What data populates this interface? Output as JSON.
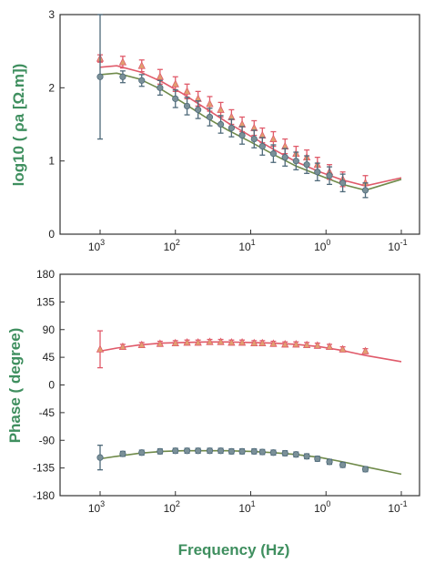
{
  "colors": {
    "series1": "#e05a6a",
    "series1_marker": "#e0a070",
    "series2": "#4f6a7a",
    "series2_marker": "#7a9098",
    "fit2": "#6f8a4a",
    "label": "#3f8f5f",
    "axis": "#333333"
  },
  "chart_data": [
    {
      "type": "scatter",
      "xscale": "log",
      "xlim": [
        1000,
        0.1
      ],
      "ylim": [
        0,
        3
      ],
      "xticks": [
        1000,
        100,
        10,
        1,
        0.1
      ],
      "xtick_labels": [
        {
          "base": "10",
          "exp": "3"
        },
        {
          "base": "10",
          "exp": "2"
        },
        {
          "base": "10",
          "exp": "1"
        },
        {
          "base": "10",
          "exp": "0"
        },
        {
          "base": "10",
          "exp": "-1"
        }
      ],
      "yticks": [
        "0",
        "1",
        "2",
        "3"
      ],
      "ylabel": "log10 ( ρa [Ω.m])",
      "series": [
        {
          "marker": "triangle",
          "x": [
            1000,
            500,
            280,
            160,
            100,
            70,
            50,
            35,
            25,
            18,
            13,
            9,
            7,
            5,
            3.5,
            2.5,
            1.8,
            1.3,
            0.9,
            0.6,
            0.3
          ],
          "y": [
            2.4,
            2.35,
            2.3,
            2.15,
            2.05,
            1.95,
            1.85,
            1.78,
            1.7,
            1.6,
            1.5,
            1.45,
            1.35,
            1.3,
            1.2,
            1.1,
            1.05,
            0.95,
            0.85,
            0.75,
            0.7
          ],
          "err": [
            0.05,
            0.08,
            0.08,
            0.1,
            0.1,
            0.1,
            0.1,
            0.1,
            0.1,
            0.1,
            0.1,
            0.1,
            0.1,
            0.1,
            0.1,
            0.1,
            0.1,
            0.1,
            0.1,
            0.1,
            0.1
          ]
        },
        {
          "marker": "circle",
          "x": [
            1000,
            500,
            280,
            160,
            100,
            70,
            50,
            35,
            25,
            18,
            13,
            9,
            7,
            5,
            3.5,
            2.5,
            1.8,
            1.3,
            0.9,
            0.6,
            0.3
          ],
          "y": [
            2.15,
            2.15,
            2.1,
            2.0,
            1.85,
            1.75,
            1.7,
            1.6,
            1.5,
            1.45,
            1.35,
            1.3,
            1.2,
            1.1,
            1.05,
            1.0,
            0.95,
            0.85,
            0.8,
            0.7,
            0.6
          ],
          "err": [
            0.85,
            0.08,
            0.08,
            0.1,
            0.12,
            0.12,
            0.12,
            0.12,
            0.12,
            0.12,
            0.12,
            0.12,
            0.12,
            0.12,
            0.12,
            0.12,
            0.12,
            0.12,
            0.12,
            0.12,
            0.1
          ]
        }
      ],
      "fits": [
        {
          "x": [
            1000,
            600,
            300,
            150,
            80,
            40,
            20,
            10,
            5,
            2.5,
            1.2,
            0.6,
            0.3,
            0.1
          ],
          "y": [
            2.28,
            2.3,
            2.22,
            2.08,
            1.92,
            1.72,
            1.52,
            1.34,
            1.16,
            0.99,
            0.85,
            0.74,
            0.66,
            0.77
          ]
        },
        {
          "x": [
            1000,
            600,
            300,
            150,
            80,
            40,
            20,
            10,
            5,
            2.5,
            1.2,
            0.6,
            0.3,
            0.1
          ],
          "y": [
            2.18,
            2.2,
            2.12,
            1.97,
            1.8,
            1.6,
            1.42,
            1.26,
            1.09,
            0.93,
            0.8,
            0.68,
            0.6,
            0.75
          ]
        }
      ]
    },
    {
      "type": "scatter",
      "xscale": "log",
      "xlim": [
        1000,
        0.1
      ],
      "ylim": [
        -180,
        180
      ],
      "xticks": [
        1000,
        100,
        10,
        1,
        0.1
      ],
      "xtick_labels": [
        {
          "base": "10",
          "exp": "3"
        },
        {
          "base": "10",
          "exp": "2"
        },
        {
          "base": "10",
          "exp": "1"
        },
        {
          "base": "10",
          "exp": "0"
        },
        {
          "base": "10",
          "exp": "-1"
        }
      ],
      "yticks": [
        "-180",
        "-135",
        "-90",
        "-45",
        "0",
        "45",
        "90",
        "135",
        "180"
      ],
      "ylabel": "Phase ( degree)",
      "xlabel": "Frequency (Hz)",
      "series": [
        {
          "marker": "triangle",
          "x": [
            1000,
            500,
            280,
            160,
            100,
            70,
            50,
            35,
            25,
            18,
            13,
            9,
            7,
            5,
            3.5,
            2.5,
            1.8,
            1.3,
            0.9,
            0.6,
            0.3
          ],
          "y": [
            58,
            62,
            65,
            67,
            68,
            69,
            69,
            70,
            70,
            69,
            69,
            68,
            68,
            67,
            66,
            66,
            65,
            64,
            62,
            58,
            55
          ],
          "err": [
            30,
            4,
            4,
            4,
            4,
            4,
            4,
            4,
            4,
            4,
            4,
            4,
            4,
            4,
            4,
            4,
            4,
            4,
            4,
            4,
            4
          ]
        },
        {
          "marker": "circle",
          "x": [
            1000,
            500,
            280,
            160,
            100,
            70,
            50,
            35,
            25,
            18,
            13,
            9,
            7,
            5,
            3.5,
            2.5,
            1.8,
            1.3,
            0.9,
            0.6,
            0.3
          ],
          "y": [
            -118,
            -112,
            -110,
            -108,
            -107,
            -107,
            -107,
            -107,
            -107,
            -108,
            -108,
            -108,
            -109,
            -110,
            -111,
            -113,
            -116,
            -120,
            -125,
            -130,
            -137
          ],
          "err": [
            20,
            4,
            4,
            4,
            4,
            4,
            4,
            4,
            4,
            4,
            4,
            4,
            4,
            4,
            4,
            4,
            4,
            4,
            4,
            4,
            4
          ]
        }
      ],
      "fits": [
        {
          "x": [
            1000,
            600,
            300,
            150,
            80,
            40,
            20,
            10,
            5,
            2.5,
            1.2,
            0.6,
            0.3,
            0.1
          ],
          "y": [
            55,
            60,
            65,
            68,
            69,
            70,
            70,
            69,
            68,
            66,
            62,
            56,
            48,
            38
          ]
        },
        {
          "x": [
            1000,
            600,
            300,
            150,
            80,
            40,
            20,
            10,
            5,
            2.5,
            1.2,
            0.6,
            0.3,
            0.1
          ],
          "y": [
            -120,
            -116,
            -111,
            -108,
            -107,
            -107,
            -107,
            -108,
            -110,
            -113,
            -118,
            -125,
            -133,
            -145
          ]
        }
      ]
    }
  ]
}
